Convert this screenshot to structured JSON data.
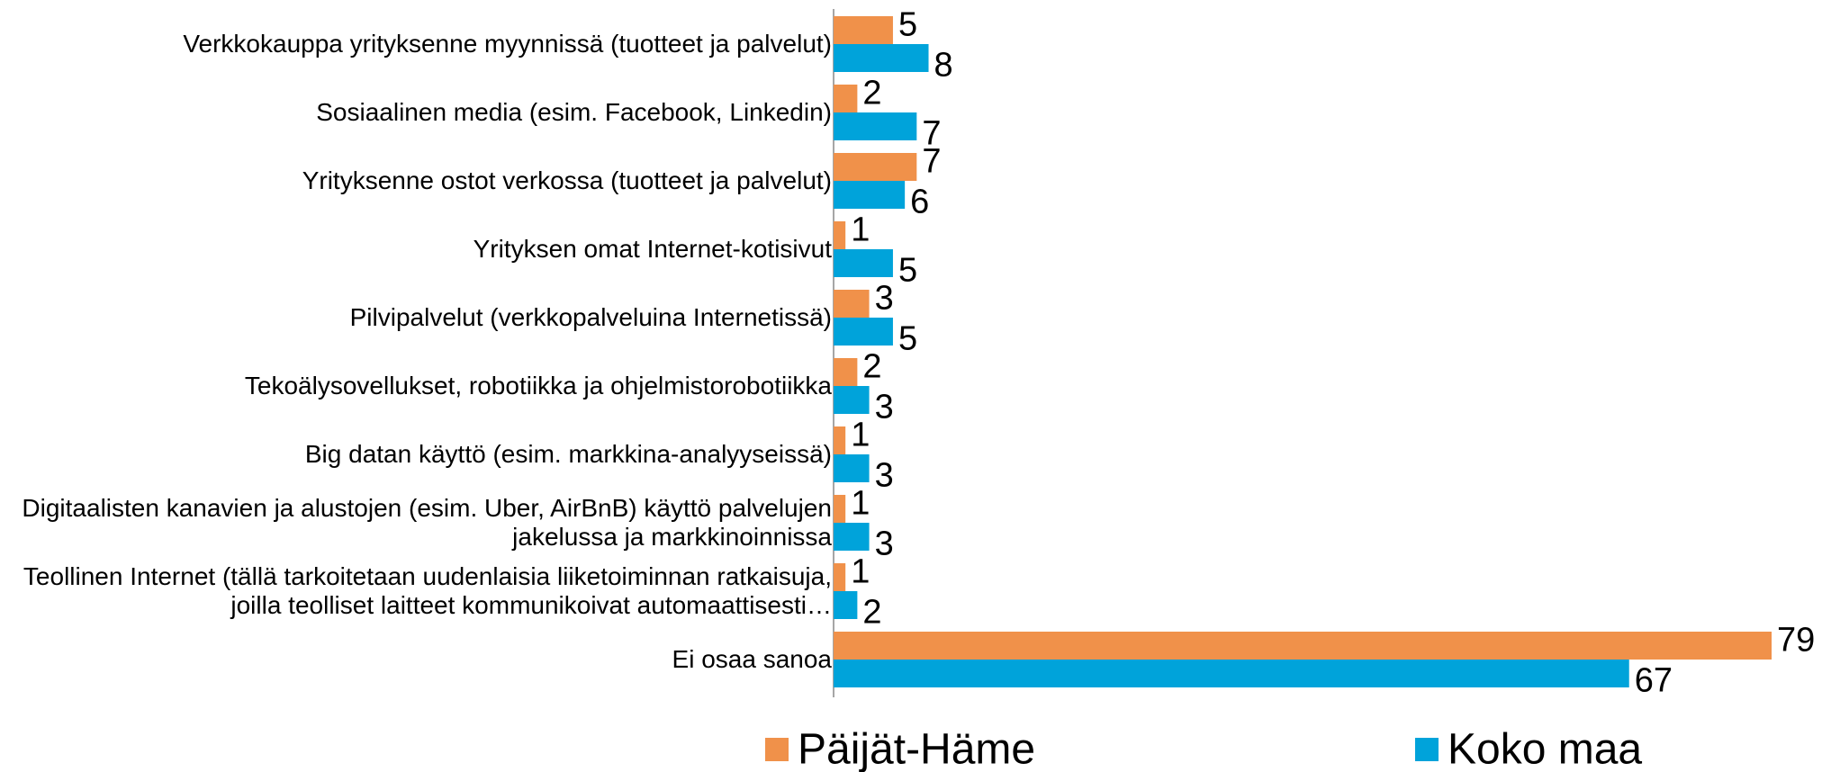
{
  "chart_data": {
    "type": "bar",
    "orientation": "horizontal",
    "categories": [
      "Verkkokauppa yrityksenne myynnissä (tuotteet ja palvelut)",
      "Sosiaalinen media (esim. Facebook, Linkedin)",
      "Yrityksenne ostot verkossa (tuotteet ja palvelut)",
      "Yrityksen omat Internet-kotisivut",
      "Pilvipalvelut  (verkkopalveluina Internetissä)",
      "Tekoälysovellukset, robotiikka ja ohjelmistorobotiikka",
      "Big datan käyttö (esim. markkina-analyyseissä)",
      "Digitaalisten kanavien ja alustojen (esim. Uber, AirBnB) käyttö palvelujen jakelussa ja markkinoinnissa",
      "Teollinen Internet (tällä tarkoitetaan uudenlaisia liiketoiminnan ratkaisuja, joilla teolliset laitteet kommunikoivat automaattisesti…",
      "Ei osaa sanoa"
    ],
    "series": [
      {
        "name": "Päijät-Häme",
        "color": "#f0914a",
        "values": [
          5,
          2,
          7,
          1,
          3,
          2,
          1,
          1,
          1,
          79
        ]
      },
      {
        "name": "Koko maa",
        "color": "#00a3da",
        "values": [
          8,
          7,
          6,
          5,
          5,
          3,
          3,
          3,
          2,
          67
        ]
      }
    ],
    "legend": "bottom"
  }
}
